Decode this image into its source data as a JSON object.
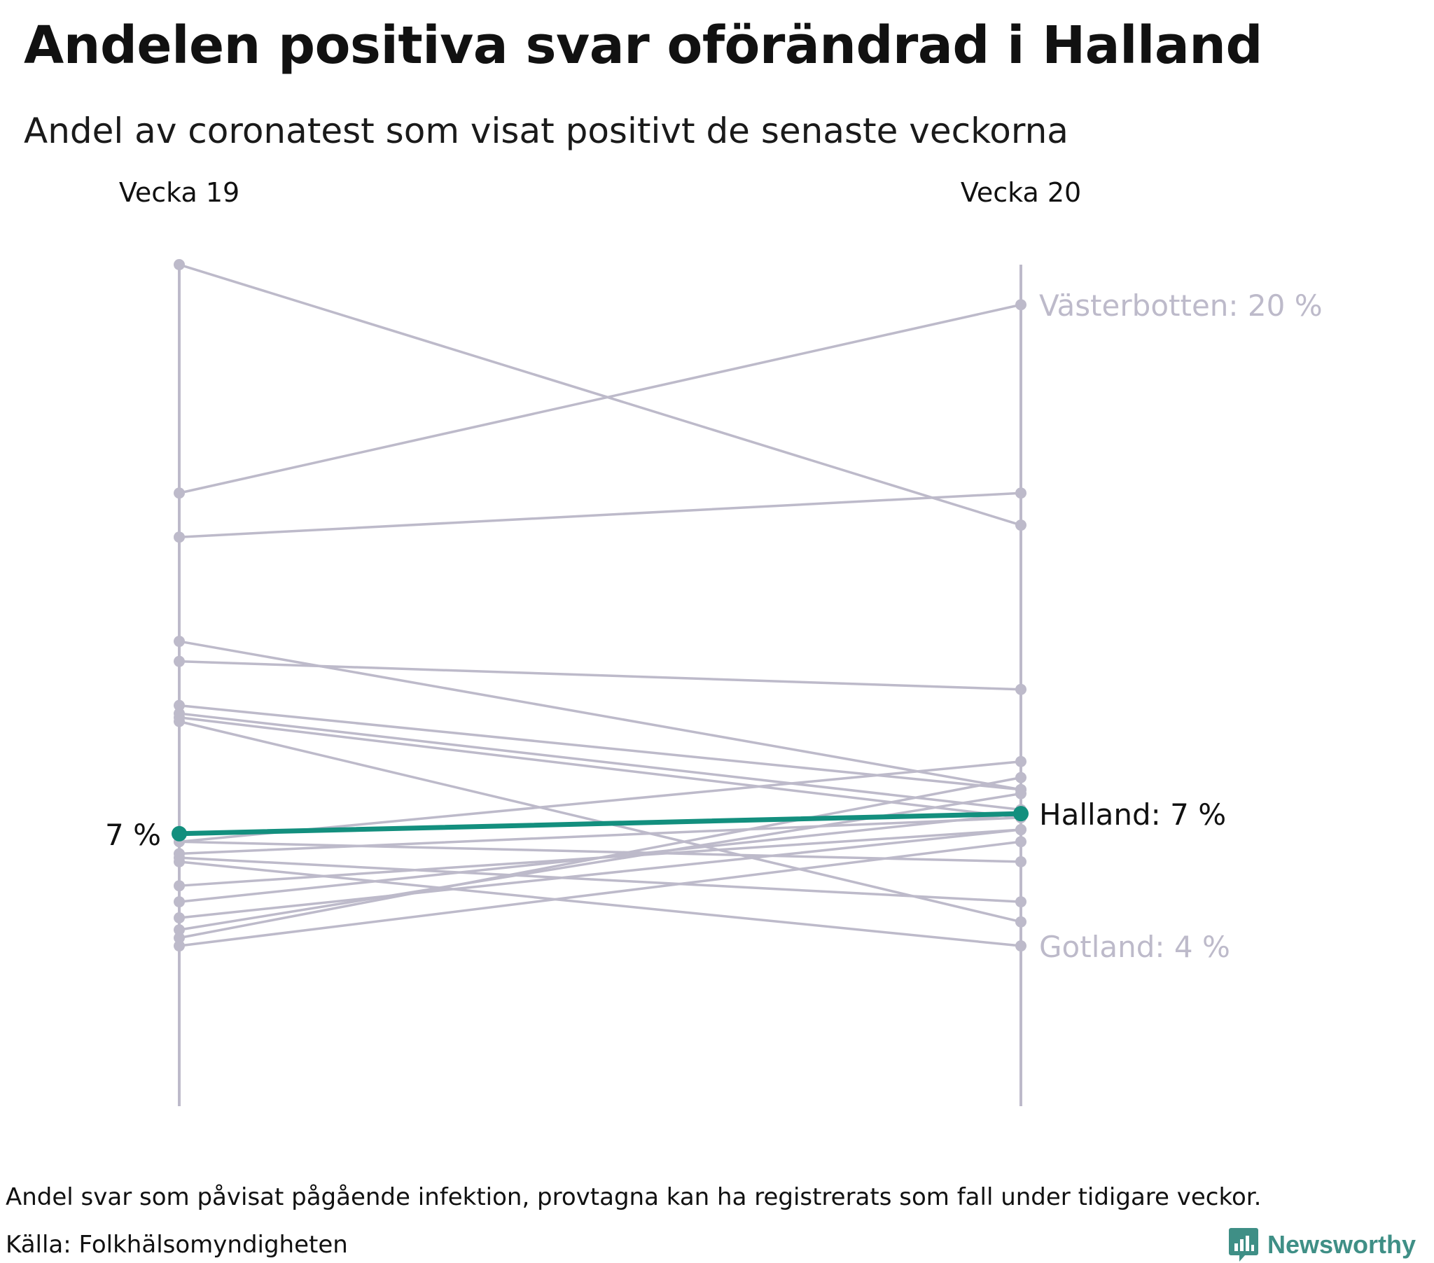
{
  "title": "Andelen positiva svar oförändrad i Halland",
  "subtitle": "Andel av coronatest som visat positivt de senaste veckorna",
  "footnote": "Andel svar som påvisat pågående infektion, provtagna kan ha registrerats som fall under tidigare veckor.",
  "source": "Källa: Folkhälsomyndigheten",
  "brand": "Newsworthy",
  "colors": {
    "highlight": "#138f7e",
    "other": "#bdbaca",
    "text": "#111111",
    "muted_label": "#bdbaca"
  },
  "chart_data": {
    "type": "line",
    "title": "Andelen positiva svar oförändrad i Halland",
    "subtitle": "Andel av coronatest som visat positivt de senaste veckorna",
    "categories": [
      "Vecka 19",
      "Vecka 20"
    ],
    "ylim": [
      0,
      21
    ],
    "grid": false,
    "series": [
      {
        "values": [
          21.0,
          14.5
        ]
      },
      {
        "name": "Västerbotten",
        "values": [
          15.3,
          20.0
        ],
        "label": "Västerbotten: 20 %",
        "label_side": "right"
      },
      {
        "values": [
          14.2,
          15.3
        ]
      },
      {
        "values": [
          11.6,
          7.9
        ]
      },
      {
        "values": [
          11.1,
          10.4
        ]
      },
      {
        "values": [
          10.0,
          7.9
        ]
      },
      {
        "values": [
          9.8,
          7.4
        ]
      },
      {
        "values": [
          9.7,
          7.2
        ]
      },
      {
        "values": [
          9.6,
          4.6
        ]
      },
      {
        "values": [
          6.6,
          8.6
        ]
      },
      {
        "values": [
          6.6,
          6.1
        ]
      },
      {
        "values": [
          6.3,
          7.2
        ]
      },
      {
        "values": [
          6.2,
          5.1
        ]
      },
      {
        "values": [
          5.5,
          6.9
        ]
      },
      {
        "values": [
          5.1,
          7.3
        ]
      },
      {
        "values": [
          4.7,
          6.9
        ]
      },
      {
        "values": [
          4.4,
          7.8
        ]
      },
      {
        "values": [
          4.2,
          8.2
        ]
      },
      {
        "values": [
          4.0,
          6.6
        ]
      },
      {
        "name": "Gotland",
        "values": [
          6.1,
          4.0
        ],
        "label": "Gotland: 4 %",
        "label_side": "right"
      },
      {
        "name": "Halland",
        "values": [
          6.8,
          7.3
        ],
        "label": "Halland: 7 %",
        "left_label": "7 %",
        "highlight": true
      }
    ]
  }
}
